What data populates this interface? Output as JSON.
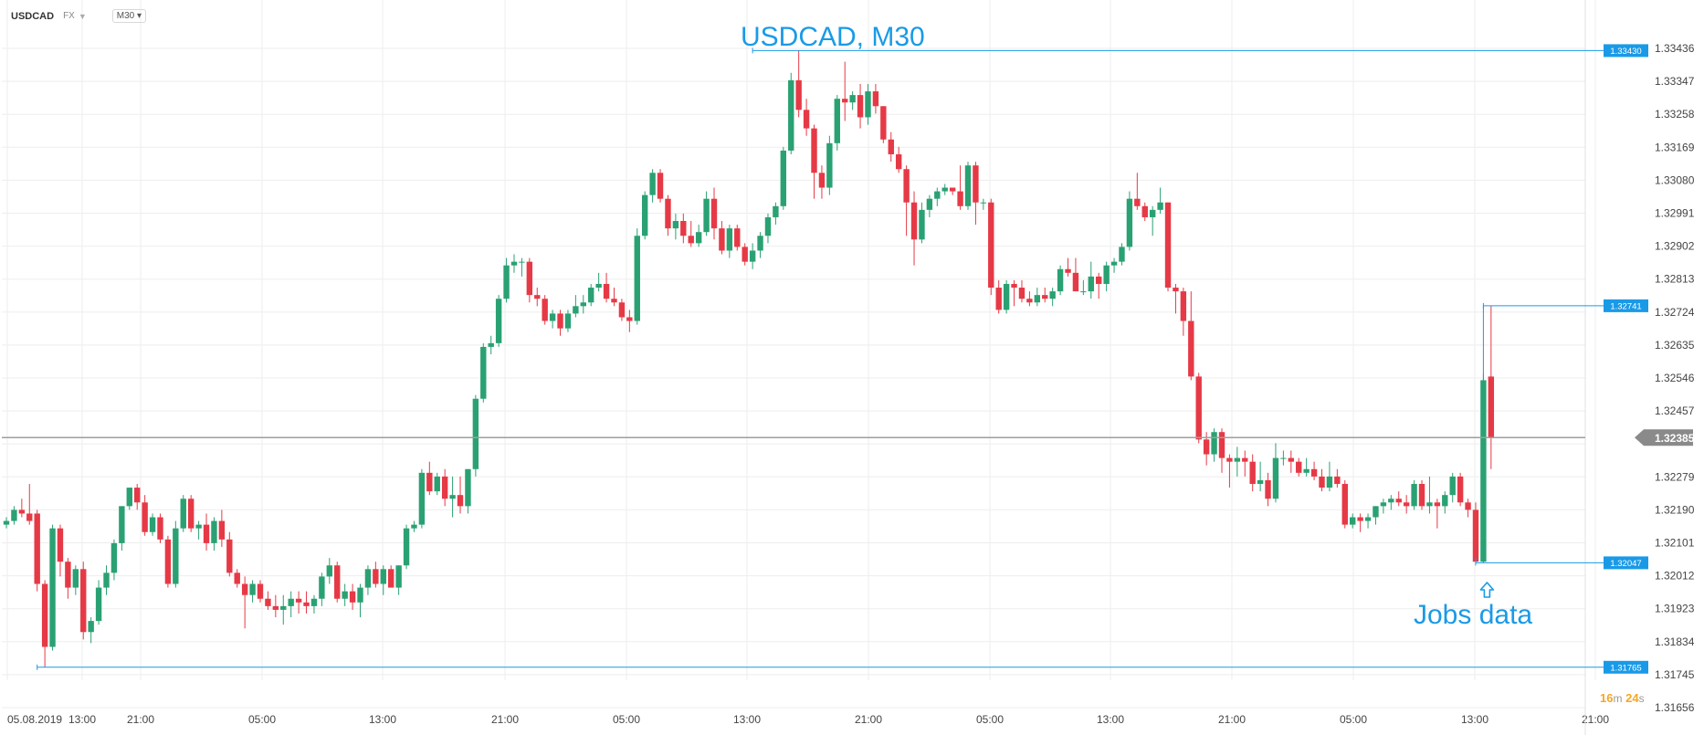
{
  "header": {
    "symbol": "USDCAD",
    "asset_class": "FX",
    "timeframe": "M30"
  },
  "timer": {
    "minutes": "16",
    "minutes_unit": "m",
    "seconds": "24",
    "seconds_unit": "s"
  },
  "colors": {
    "up": "#2aa173",
    "down": "#e63946",
    "annotation": "#1a9ae6",
    "price_line": "#9e9e9e",
    "grid": "#eeeeee"
  },
  "chart_data": {
    "type": "candlestick",
    "title": "USDCAD, M30",
    "y_axis_ticks": [
      1.31656,
      1.31745,
      1.31834,
      1.31923,
      1.32012,
      1.32101,
      1.3219,
      1.32279,
      1.32368,
      1.32457,
      1.32546,
      1.32635,
      1.32724,
      1.32813,
      1.32902,
      1.32991,
      1.3308,
      1.33169,
      1.33258,
      1.33347,
      1.33436
    ],
    "y_axis_tick_labels": [
      "1.31656",
      "1.31745",
      "1.31834",
      "1.31923",
      "1.32012",
      "1.32101",
      "1.32190",
      "1.32279",
      "",
      "1.32457",
      "1.32546",
      "1.32635",
      "1.32724",
      "1.32813",
      "1.32902",
      "1.32991",
      "1.33080",
      "1.33169",
      "1.33258",
      "1.33347",
      "1.33436"
    ],
    "ylim": [
      1.31656,
      1.33436
    ],
    "x_axis_labels": [
      "05.08.2019",
      "13:00",
      "21:00",
      "05:00",
      "13:00",
      "21:00",
      "05:00",
      "13:00",
      "21:00",
      "05:00",
      "13:00",
      "21:00",
      "05:00",
      "13:00",
      "21:00"
    ],
    "current_price": 1.32385,
    "current_price_label": "1.32385",
    "price_markers": [
      {
        "label": "1.33430",
        "value": 1.3343,
        "start_candle": 97
      },
      {
        "label": "1.32741",
        "value": 1.32741,
        "start_candle": 192
      },
      {
        "label": "1.32047",
        "value": 1.32047,
        "start_candle": 191
      },
      {
        "label": "1.31765",
        "value": 1.31765,
        "start_candle": 4
      }
    ],
    "annotations": [
      {
        "text": "Jobs data",
        "candle": 192,
        "icon": "up-arrow-icon"
      }
    ],
    "candles": [
      [
        1.3215,
        1.3217,
        1.3214,
        1.3216
      ],
      [
        1.3216,
        1.322,
        1.3215,
        1.3219
      ],
      [
        1.3219,
        1.3222,
        1.3217,
        1.3218
      ],
      [
        1.3218,
        1.3226,
        1.3215,
        1.3216
      ],
      [
        1.3218,
        1.3219,
        1.3197,
        1.3199
      ],
      [
        1.3199,
        1.32,
        1.31765,
        1.3182
      ],
      [
        1.3182,
        1.3215,
        1.3181,
        1.3214
      ],
      [
        1.3214,
        1.3215,
        1.3201,
        1.3205
      ],
      [
        1.3205,
        1.3206,
        1.3195,
        1.3198
      ],
      [
        1.3198,
        1.3204,
        1.3196,
        1.3203
      ],
      [
        1.3203,
        1.3205,
        1.3184,
        1.3186
      ],
      [
        1.3186,
        1.319,
        1.3183,
        1.3189
      ],
      [
        1.3189,
        1.32,
        1.3188,
        1.3198
      ],
      [
        1.3198,
        1.3204,
        1.3196,
        1.3202
      ],
      [
        1.3202,
        1.3211,
        1.32,
        1.321
      ],
      [
        1.321,
        1.322,
        1.3208,
        1.322
      ],
      [
        1.322,
        1.3225,
        1.3219,
        1.3225
      ],
      [
        1.3225,
        1.3226,
        1.3219,
        1.3221
      ],
      [
        1.3221,
        1.3223,
        1.3212,
        1.3213
      ],
      [
        1.3213,
        1.3218,
        1.3212,
        1.3217
      ],
      [
        1.3217,
        1.3218,
        1.321,
        1.3211
      ],
      [
        1.3211,
        1.3212,
        1.3198,
        1.3199
      ],
      [
        1.3199,
        1.3216,
        1.3198,
        1.3214
      ],
      [
        1.3214,
        1.3223,
        1.3213,
        1.3222
      ],
      [
        1.3222,
        1.3223,
        1.3213,
        1.3214
      ],
      [
        1.3214,
        1.3216,
        1.3211,
        1.3215
      ],
      [
        1.3215,
        1.3218,
        1.3208,
        1.321
      ],
      [
        1.321,
        1.3217,
        1.3208,
        1.3216
      ],
      [
        1.3216,
        1.3219,
        1.3209,
        1.3211
      ],
      [
        1.3211,
        1.3213,
        1.3201,
        1.3202
      ],
      [
        1.3202,
        1.3203,
        1.3198,
        1.3199
      ],
      [
        1.3199,
        1.3201,
        1.3187,
        1.3196
      ],
      [
        1.3196,
        1.32,
        1.3194,
        1.3199
      ],
      [
        1.3199,
        1.32,
        1.3194,
        1.3195
      ],
      [
        1.3195,
        1.3197,
        1.3192,
        1.3193
      ],
      [
        1.3193,
        1.3196,
        1.319,
        1.3192
      ],
      [
        1.3192,
        1.3196,
        1.3188,
        1.3193
      ],
      [
        1.3193,
        1.3197,
        1.319,
        1.3195
      ],
      [
        1.3195,
        1.3197,
        1.3191,
        1.3194
      ],
      [
        1.3194,
        1.3197,
        1.3191,
        1.3193
      ],
      [
        1.3193,
        1.3196,
        1.3191,
        1.3195
      ],
      [
        1.3195,
        1.3202,
        1.3193,
        1.3201
      ],
      [
        1.3201,
        1.3206,
        1.3199,
        1.3204
      ],
      [
        1.3204,
        1.3205,
        1.3194,
        1.3195
      ],
      [
        1.3195,
        1.3199,
        1.3193,
        1.3197
      ],
      [
        1.3197,
        1.3199,
        1.3192,
        1.3194
      ],
      [
        1.3194,
        1.3199,
        1.319,
        1.3198
      ],
      [
        1.3198,
        1.3204,
        1.3196,
        1.3203
      ],
      [
        1.3203,
        1.3205,
        1.3198,
        1.3199
      ],
      [
        1.3199,
        1.3204,
        1.3196,
        1.3203
      ],
      [
        1.3203,
        1.3204,
        1.3198,
        1.3198
      ],
      [
        1.3198,
        1.3204,
        1.3196,
        1.3204
      ],
      [
        1.3204,
        1.3215,
        1.3203,
        1.3214
      ],
      [
        1.3214,
        1.3216,
        1.3213,
        1.3215
      ],
      [
        1.3215,
        1.323,
        1.3214,
        1.3229
      ],
      [
        1.3229,
        1.3232,
        1.3223,
        1.3224
      ],
      [
        1.3224,
        1.3229,
        1.3223,
        1.3228
      ],
      [
        1.3228,
        1.323,
        1.322,
        1.3222
      ],
      [
        1.3222,
        1.3228,
        1.3217,
        1.3223
      ],
      [
        1.3223,
        1.3228,
        1.3218,
        1.322
      ],
      [
        1.322,
        1.323,
        1.3218,
        1.323
      ],
      [
        1.323,
        1.325,
        1.3228,
        1.3249
      ],
      [
        1.3249,
        1.3264,
        1.3248,
        1.3263
      ],
      [
        1.3263,
        1.3266,
        1.3261,
        1.3264
      ],
      [
        1.3264,
        1.3277,
        1.3263,
        1.3276
      ],
      [
        1.3276,
        1.3287,
        1.3275,
        1.3285
      ],
      [
        1.3285,
        1.3288,
        1.3283,
        1.3286
      ],
      [
        1.3286,
        1.3287,
        1.3282,
        1.3286
      ],
      [
        1.3286,
        1.3287,
        1.3275,
        1.3277
      ],
      [
        1.3277,
        1.3279,
        1.3274,
        1.3276
      ],
      [
        1.3276,
        1.3277,
        1.3269,
        1.327
      ],
      [
        1.327,
        1.3273,
        1.3268,
        1.3272
      ],
      [
        1.3272,
        1.3273,
        1.3266,
        1.3268
      ],
      [
        1.3268,
        1.3273,
        1.3267,
        1.3272
      ],
      [
        1.3272,
        1.3277,
        1.3271,
        1.3274
      ],
      [
        1.3274,
        1.3277,
        1.3272,
        1.3275
      ],
      [
        1.3275,
        1.328,
        1.3274,
        1.3279
      ],
      [
        1.3279,
        1.3283,
        1.3278,
        1.328
      ],
      [
        1.328,
        1.3283,
        1.3275,
        1.3276
      ],
      [
        1.3276,
        1.3279,
        1.3274,
        1.3275
      ],
      [
        1.3275,
        1.3276,
        1.327,
        1.3271
      ],
      [
        1.3271,
        1.3273,
        1.3267,
        1.327
      ],
      [
        1.327,
        1.3295,
        1.3269,
        1.3293
      ],
      [
        1.3293,
        1.3305,
        1.3292,
        1.3304
      ],
      [
        1.3304,
        1.3311,
        1.3302,
        1.331
      ],
      [
        1.331,
        1.3311,
        1.3302,
        1.3303
      ],
      [
        1.3303,
        1.3304,
        1.3293,
        1.3295
      ],
      [
        1.3295,
        1.3299,
        1.3292,
        1.3297
      ],
      [
        1.3297,
        1.3299,
        1.3291,
        1.3293
      ],
      [
        1.3293,
        1.3297,
        1.329,
        1.3291
      ],
      [
        1.3291,
        1.3296,
        1.329,
        1.3294
      ],
      [
        1.3294,
        1.3305,
        1.3293,
        1.3303
      ],
      [
        1.3303,
        1.3306,
        1.3292,
        1.3295
      ],
      [
        1.3295,
        1.3297,
        1.3288,
        1.3289
      ],
      [
        1.3289,
        1.3296,
        1.3287,
        1.3295
      ],
      [
        1.3295,
        1.3296,
        1.3289,
        1.329
      ],
      [
        1.329,
        1.3291,
        1.3285,
        1.3286
      ],
      [
        1.3286,
        1.3291,
        1.3284,
        1.3289
      ],
      [
        1.3289,
        1.3294,
        1.3287,
        1.3293
      ],
      [
        1.3293,
        1.3299,
        1.3291,
        1.3298
      ],
      [
        1.3298,
        1.3302,
        1.3296,
        1.3301
      ],
      [
        1.3301,
        1.3317,
        1.33,
        1.3316
      ],
      [
        1.3316,
        1.3337,
        1.3315,
        1.3335
      ],
      [
        1.3335,
        1.3343,
        1.3325,
        1.3327
      ],
      [
        1.3327,
        1.333,
        1.332,
        1.3322
      ],
      [
        1.3322,
        1.3323,
        1.3303,
        1.331
      ],
      [
        1.331,
        1.3312,
        1.3303,
        1.3306
      ],
      [
        1.3306,
        1.332,
        1.3304,
        1.3318
      ],
      [
        1.3318,
        1.3331,
        1.3316,
        1.333
      ],
      [
        1.333,
        1.334,
        1.3324,
        1.3329
      ],
      [
        1.3329,
        1.3332,
        1.3327,
        1.3331
      ],
      [
        1.3331,
        1.3334,
        1.3322,
        1.3325
      ],
      [
        1.3325,
        1.3334,
        1.3323,
        1.3332
      ],
      [
        1.3332,
        1.3334,
        1.3326,
        1.3328
      ],
      [
        1.3328,
        1.3328,
        1.3318,
        1.3319
      ],
      [
        1.3319,
        1.3321,
        1.3313,
        1.3315
      ],
      [
        1.3315,
        1.3317,
        1.331,
        1.3311
      ],
      [
        1.3311,
        1.3312,
        1.3293,
        1.3302
      ],
      [
        1.3302,
        1.3305,
        1.3285,
        1.3292
      ],
      [
        1.3292,
        1.3302,
        1.3291,
        1.33
      ],
      [
        1.33,
        1.3304,
        1.3298,
        1.3303
      ],
      [
        1.3303,
        1.3306,
        1.3301,
        1.3305
      ],
      [
        1.3305,
        1.3307,
        1.3304,
        1.3306
      ],
      [
        1.3306,
        1.3306,
        1.3304,
        1.3305
      ],
      [
        1.3305,
        1.3312,
        1.33,
        1.3301
      ],
      [
        1.3301,
        1.3313,
        1.33,
        1.3312
      ],
      [
        1.3312,
        1.3313,
        1.3296,
        1.3302
      ],
      [
        1.3302,
        1.3303,
        1.33,
        1.3302
      ],
      [
        1.3302,
        1.3303,
        1.3277,
        1.3279
      ],
      [
        1.3279,
        1.3281,
        1.3272,
        1.3273
      ],
      [
        1.3273,
        1.3281,
        1.3272,
        1.328
      ],
      [
        1.328,
        1.3281,
        1.3274,
        1.3279
      ],
      [
        1.3279,
        1.3281,
        1.3275,
        1.3276
      ],
      [
        1.3276,
        1.3278,
        1.3274,
        1.3275
      ],
      [
        1.3275,
        1.3279,
        1.3274,
        1.3277
      ],
      [
        1.3277,
        1.3279,
        1.3275,
        1.3276
      ],
      [
        1.3276,
        1.3279,
        1.3274,
        1.3278
      ],
      [
        1.3278,
        1.3285,
        1.3277,
        1.3284
      ],
      [
        1.3284,
        1.3287,
        1.3282,
        1.3283
      ],
      [
        1.3283,
        1.3287,
        1.3278,
        1.3278
      ],
      [
        1.3278,
        1.3281,
        1.3277,
        1.3278
      ],
      [
        1.3278,
        1.3286,
        1.3276,
        1.3282
      ],
      [
        1.3282,
        1.3283,
        1.3276,
        1.328
      ],
      [
        1.328,
        1.3286,
        1.3278,
        1.3285
      ],
      [
        1.3285,
        1.3287,
        1.3283,
        1.3286
      ],
      [
        1.3286,
        1.3291,
        1.3285,
        1.329
      ],
      [
        1.329,
        1.3305,
        1.3289,
        1.3303
      ],
      [
        1.3303,
        1.331,
        1.33,
        1.3301
      ],
      [
        1.3301,
        1.3302,
        1.3297,
        1.3298
      ],
      [
        1.3298,
        1.3301,
        1.3293,
        1.33
      ],
      [
        1.33,
        1.3306,
        1.3299,
        1.3302
      ],
      [
        1.3302,
        1.3302,
        1.3278,
        1.3279
      ],
      [
        1.3279,
        1.328,
        1.3272,
        1.3278
      ],
      [
        1.3278,
        1.3279,
        1.3266,
        1.327
      ],
      [
        1.327,
        1.3278,
        1.3254,
        1.3255
      ],
      [
        1.3255,
        1.3256,
        1.3237,
        1.3238
      ],
      [
        1.3238,
        1.324,
        1.3231,
        1.3234
      ],
      [
        1.3234,
        1.3241,
        1.3232,
        1.324
      ],
      [
        1.324,
        1.3241,
        1.3229,
        1.3233
      ],
      [
        1.3233,
        1.3234,
        1.3225,
        1.3232
      ],
      [
        1.3232,
        1.3236,
        1.3228,
        1.3233
      ],
      [
        1.3233,
        1.3235,
        1.3228,
        1.3232
      ],
      [
        1.3232,
        1.3234,
        1.3224,
        1.3226
      ],
      [
        1.3226,
        1.3232,
        1.3224,
        1.3227
      ],
      [
        1.3227,
        1.3229,
        1.322,
        1.3222
      ],
      [
        1.3222,
        1.3237,
        1.3221,
        1.3233
      ],
      [
        1.3233,
        1.3235,
        1.3231,
        1.3233
      ],
      [
        1.3233,
        1.3235,
        1.3229,
        1.3232
      ],
      [
        1.3232,
        1.3233,
        1.3228,
        1.3229
      ],
      [
        1.3229,
        1.3233,
        1.3228,
        1.323
      ],
      [
        1.323,
        1.3232,
        1.3227,
        1.3228
      ],
      [
        1.3228,
        1.323,
        1.3224,
        1.3225
      ],
      [
        1.3225,
        1.3232,
        1.3224,
        1.3228
      ],
      [
        1.3228,
        1.323,
        1.3225,
        1.3226
      ],
      [
        1.3226,
        1.3227,
        1.3214,
        1.3215
      ],
      [
        1.3215,
        1.3218,
        1.3214,
        1.3217
      ],
      [
        1.3217,
        1.3218,
        1.3213,
        1.3216
      ],
      [
        1.3216,
        1.3218,
        1.3214,
        1.3217
      ],
      [
        1.3217,
        1.322,
        1.3215,
        1.322
      ],
      [
        1.322,
        1.3222,
        1.3218,
        1.3221
      ],
      [
        1.3221,
        1.3223,
        1.3219,
        1.3222
      ],
      [
        1.3222,
        1.3224,
        1.322,
        1.3221
      ],
      [
        1.3221,
        1.3223,
        1.3218,
        1.322
      ],
      [
        1.322,
        1.3227,
        1.3219,
        1.3226
      ],
      [
        1.3226,
        1.3227,
        1.3219,
        1.322
      ],
      [
        1.322,
        1.3228,
        1.3218,
        1.3221
      ],
      [
        1.3221,
        1.3222,
        1.3214,
        1.322
      ],
      [
        1.322,
        1.3224,
        1.3218,
        1.3223
      ],
      [
        1.3223,
        1.3229,
        1.3221,
        1.3228
      ],
      [
        1.3228,
        1.3229,
        1.322,
        1.3221
      ],
      [
        1.3221,
        1.3222,
        1.3217,
        1.3219
      ],
      [
        1.3219,
        1.3221,
        1.3205,
        1.3205
      ],
      [
        1.3205,
        1.3256,
        1.32047,
        1.3254
      ],
      [
        1.3255,
        1.32741,
        1.323,
        1.32385
      ]
    ]
  }
}
